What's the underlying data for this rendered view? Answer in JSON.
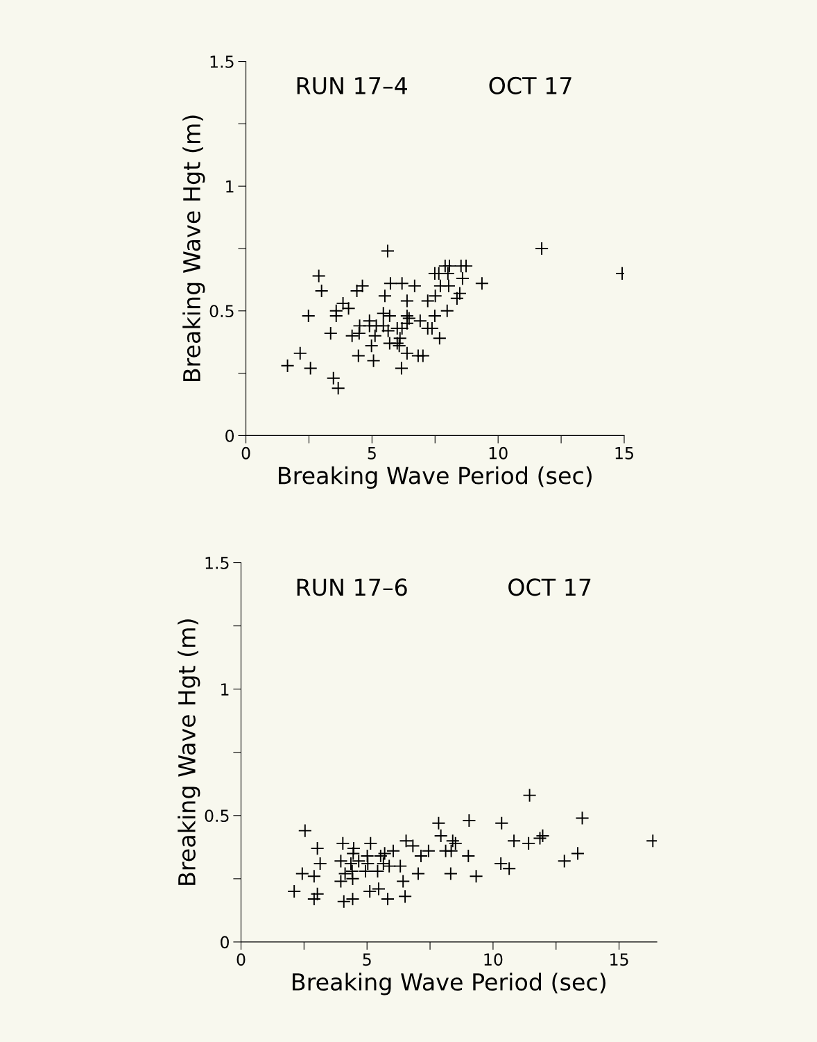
{
  "chart_data": [
    {
      "type": "scatter",
      "xlabel": "Breaking Wave Period (sec)",
      "ylabel": "Breaking Wave Hgt (m)",
      "annotations": [
        "RUN 17–4",
        "OCT 17"
      ],
      "marker": "cross",
      "grid": false,
      "legend": false,
      "xlim": [
        0,
        15
      ],
      "xticks": [
        0,
        {
          "value": 2.5,
          "label": null
        },
        5,
        {
          "value": 7.5,
          "label": null
        },
        10,
        {
          "value": 12.5,
          "label": null
        },
        15
      ],
      "ylim": [
        0,
        1.5
      ],
      "yticks": [
        0,
        {
          "value": 0.25,
          "label": null
        },
        0.5,
        {
          "value": 0.75,
          "label": null
        },
        1,
        {
          "value": 1.25,
          "label": null
        },
        1.5
      ],
      "series": [
        {
          "color": "#000000",
          "x": [
            5.62,
            2.89,
            3.0,
            2.48,
            3.36,
            2.15,
            1.65,
            2.56,
            3.47,
            3.66,
            4.62,
            4.4,
            3.85,
            3.58,
            4.07,
            3.58,
            5.73,
            6.19,
            6.69,
            5.51,
            6.39,
            5.45,
            5.7,
            4.9,
            4.51,
            4.9,
            5.17,
            5.45,
            5.64,
            4.21,
            4.49,
            5.12,
            4.98,
            5.7,
            6.0,
            6.11,
            6.08,
            6.0,
            6.19,
            6.39,
            6.47,
            6.39,
            6.91,
            4.46,
            5.06,
            6.39,
            6.17,
            6.83,
            7.02,
            7.49,
            7.21,
            7.38,
            7.68,
            7.98,
            7.21,
            7.51,
            7.71,
            8.04,
            8.48,
            8.37,
            7.49,
            7.65,
            8.01,
            7.9,
            8.07,
            8.53,
            8.73,
            8.59,
            9.36,
            11.73,
            14.92
          ],
          "values": [
            0.74,
            0.64,
            0.58,
            0.48,
            0.41,
            0.33,
            0.28,
            0.27,
            0.23,
            0.19,
            0.6,
            0.58,
            0.53,
            0.5,
            0.51,
            0.48,
            0.61,
            0.61,
            0.6,
            0.56,
            0.54,
            0.49,
            0.48,
            0.46,
            0.44,
            0.44,
            0.44,
            0.44,
            0.42,
            0.4,
            0.41,
            0.4,
            0.36,
            0.37,
            0.37,
            0.39,
            0.36,
            0.43,
            0.43,
            0.48,
            0.47,
            0.45,
            0.46,
            0.32,
            0.3,
            0.33,
            0.27,
            0.32,
            0.32,
            0.48,
            0.43,
            0.43,
            0.39,
            0.5,
            0.54,
            0.56,
            0.6,
            0.6,
            0.57,
            0.55,
            0.65,
            0.65,
            0.65,
            0.68,
            0.68,
            0.68,
            0.68,
            0.63,
            0.61,
            0.75,
            0.65
          ]
        }
      ]
    },
    {
      "type": "scatter",
      "xlabel": "Breaking Wave Period (sec)",
      "ylabel": "Breaking Wave Hgt (m)",
      "annotations": [
        "RUN 17–6",
        "OCT 17"
      ],
      "marker": "cross",
      "grid": false,
      "legend": false,
      "xlim": [
        0,
        16.5
      ],
      "xticks": [
        0,
        {
          "value": 2.5,
          "label": null
        },
        5,
        {
          "value": 7.5,
          "label": null
        },
        10,
        {
          "value": 12.5,
          "label": null
        },
        15
      ],
      "ylim": [
        0,
        1.5
      ],
      "yticks": [
        0,
        {
          "value": 0.25,
          "label": null
        },
        0.5,
        {
          "value": 0.75,
          "label": null
        },
        1,
        {
          "value": 1.25,
          "label": null
        },
        1.5
      ],
      "series": [
        {
          "color": "#000000",
          "x": [
            2.54,
            3.03,
            3.14,
            2.43,
            2.9,
            2.11,
            3.03,
            2.9,
            4.04,
            5.14,
            4.47,
            4.45,
            5.01,
            5.54,
            5.7,
            6.04,
            3.96,
            4.36,
            4.67,
            5.03,
            5.65,
            5.88,
            6.32,
            4.13,
            4.41,
            4.94,
            5.42,
            3.96,
            4.43,
            5.11,
            5.46,
            4.08,
            4.43,
            5.82,
            6.51,
            6.43,
            6.55,
            6.82,
            7.14,
            7.44,
            7.03,
            7.84,
            7.93,
            8.12,
            8.34,
            8.4,
            8.51,
            9.05,
            9.02,
            8.32,
            9.33,
            10.34,
            10.31,
            10.64,
            10.83,
            11.45,
            11.41,
            11.86,
            11.97,
            12.83,
            13.36,
            13.54,
            16.34
          ],
          "values": [
            0.44,
            0.37,
            0.31,
            0.27,
            0.26,
            0.2,
            0.19,
            0.17,
            0.39,
            0.39,
            0.37,
            0.35,
            0.34,
            0.34,
            0.35,
            0.36,
            0.32,
            0.31,
            0.32,
            0.31,
            0.31,
            0.3,
            0.3,
            0.27,
            0.28,
            0.28,
            0.28,
            0.24,
            0.25,
            0.2,
            0.21,
            0.16,
            0.17,
            0.17,
            0.18,
            0.24,
            0.4,
            0.38,
            0.34,
            0.36,
            0.27,
            0.47,
            0.42,
            0.36,
            0.36,
            0.4,
            0.39,
            0.48,
            0.34,
            0.27,
            0.26,
            0.47,
            0.31,
            0.29,
            0.4,
            0.58,
            0.39,
            0.41,
            0.42,
            0.32,
            0.35,
            0.49,
            0.4
          ]
        }
      ]
    }
  ]
}
